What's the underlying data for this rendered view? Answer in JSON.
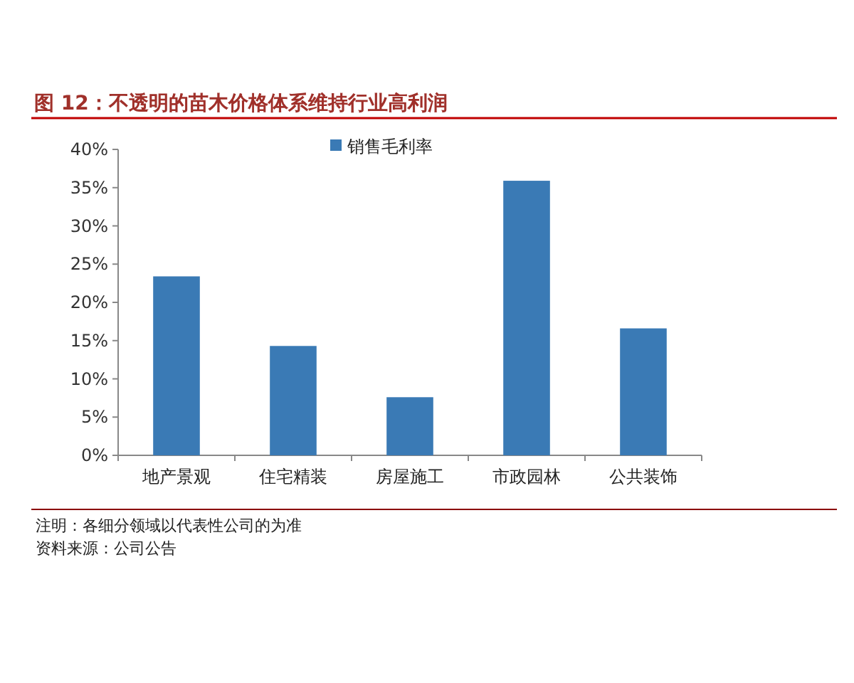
{
  "chart_data": {
    "type": "bar",
    "title": "图 12：不透明的苗木价格体系维持行业高利润",
    "categories": [
      "地产景观",
      "住宅精装",
      "房屋施工",
      "市政园林",
      "公共装饰"
    ],
    "series": [
      {
        "name": "销售毛利率",
        "color": "#3a7ab5",
        "values": [
          23.4,
          14.3,
          7.6,
          35.9,
          16.6
        ]
      }
    ],
    "ylim": [
      0,
      40
    ],
    "yticks": [
      {
        "value": 0,
        "label": "0%"
      },
      {
        "value": 5,
        "label": "5%"
      },
      {
        "value": 10,
        "label": "10%"
      },
      {
        "value": 15,
        "label": "15%"
      },
      {
        "value": 20,
        "label": "20%"
      },
      {
        "value": 25,
        "label": "25%"
      },
      {
        "value": 30,
        "label": "30%"
      },
      {
        "value": 35,
        "label": "35%"
      },
      {
        "value": 40,
        "label": "40%"
      }
    ],
    "legend": "top",
    "grid": false,
    "annotations": [
      "注明：各细分领域以代表性公司的为准",
      "资料来源：公司公告"
    ]
  }
}
